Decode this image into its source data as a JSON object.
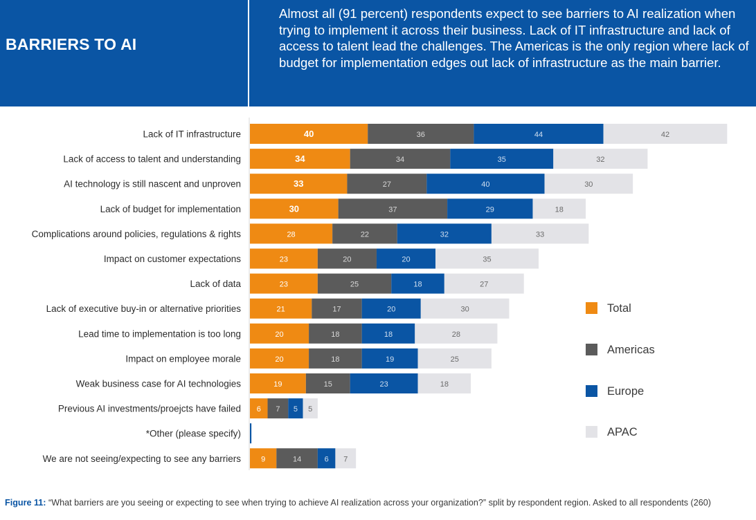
{
  "header": {
    "title": "BARRIERS TO AI",
    "text": "Almost all (91 percent) respondents expect to see barriers to AI realization when trying to implement it across their business. Lack of IT infrastructure and lack of access to talent lead the challenges. The Americas is the only region where lack of budget for implementation edges out lack of infrastructure as the main barrier."
  },
  "caption": {
    "label": "Figure 11:",
    "text": " “What barriers are you seeing or expecting to see when trying to achieve AI realization across your organization?” split by respondent region. Asked to all respondents (260)"
  },
  "colors": {
    "header_bg": "#0a55a4",
    "total": "#ef8a13",
    "americas": "#5b5b5b",
    "europe": "#0a55a4",
    "apac": "#e3e3e7"
  },
  "chart_data": {
    "type": "bar",
    "orientation": "horizontal",
    "stacked": true,
    "legend_position": "right",
    "categories": [
      "Lack of IT infrastructure",
      "Lack of access to talent and understanding",
      "AI technology is still nascent and unproven",
      "Lack of budget for implementation",
      "Complications around policies, regulations & rights",
      "Impact on customer expectations",
      "Lack of data",
      "Lack of executive buy-in or alternative priorities",
      "Lead time to implementation is too long",
      "Impact on employee morale",
      "Weak business case for AI technologies",
      "Previous AI investments/proejcts have failed",
      "*Other (please specify)",
      "We are not seeing/expecting to see any barriers"
    ],
    "series": [
      {
        "name": "Total",
        "values": [
          40,
          34,
          33,
          30,
          28,
          23,
          23,
          21,
          20,
          20,
          19,
          6,
          0,
          9
        ]
      },
      {
        "name": "Americas",
        "values": [
          36,
          34,
          27,
          37,
          22,
          20,
          25,
          17,
          18,
          18,
          15,
          7,
          0,
          14
        ]
      },
      {
        "name": "Europe",
        "values": [
          44,
          35,
          40,
          29,
          32,
          20,
          18,
          20,
          18,
          19,
          23,
          5,
          0.5,
          6
        ]
      },
      {
        "name": "APAC",
        "values": [
          42,
          32,
          30,
          18,
          33,
          35,
          27,
          30,
          28,
          25,
          18,
          5,
          0,
          7
        ]
      }
    ],
    "bold_total_labels": [
      true,
      true,
      true,
      true,
      false,
      false,
      false,
      false,
      false,
      false,
      false,
      false,
      false,
      false
    ]
  }
}
